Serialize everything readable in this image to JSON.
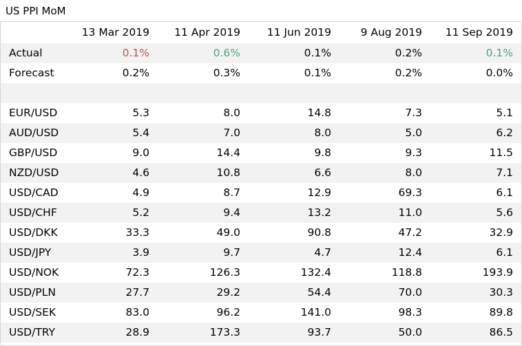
{
  "title": "US PPI MoM",
  "columns": [
    "13 Mar 2019",
    "11 Apr 2019",
    "11 Jun 2019",
    "9 Aug 2019",
    "11 Sep 2019"
  ],
  "actual": {
    "label": "Actual",
    "values": [
      "0.1%",
      "0.6%",
      "0.1%",
      "0.2%",
      "0.1%"
    ],
    "value_colors": [
      "red",
      "green",
      "black",
      "black",
      "green"
    ]
  },
  "forecast": {
    "label": "Forecast",
    "values": [
      "0.2%",
      "0.3%",
      "0.1%",
      "0.2%",
      "0.0%"
    ]
  },
  "pairs": [
    {
      "label": "EUR/USD",
      "values": [
        "5.3",
        "8.0",
        "14.8",
        "7.3",
        "5.1"
      ]
    },
    {
      "label": "AUD/USD",
      "values": [
        "5.4",
        "7.0",
        "8.0",
        "5.0",
        "6.2"
      ]
    },
    {
      "label": "GBP/USD",
      "values": [
        "9.0",
        "14.4",
        "9.8",
        "9.3",
        "11.5"
      ]
    },
    {
      "label": "NZD/USD",
      "values": [
        "4.6",
        "10.8",
        "6.6",
        "8.0",
        "7.1"
      ]
    },
    {
      "label": "USD/CAD",
      "values": [
        "4.9",
        "8.7",
        "12.9",
        "69.3",
        "6.1"
      ]
    },
    {
      "label": "USD/CHF",
      "values": [
        "5.2",
        "9.4",
        "13.2",
        "11.0",
        "5.6"
      ]
    },
    {
      "label": "USD/DKK",
      "values": [
        "33.3",
        "49.0",
        "90.8",
        "47.2",
        "32.9"
      ]
    },
    {
      "label": "USD/JPY",
      "values": [
        "3.9",
        "9.7",
        "4.7",
        "12.4",
        "6.1"
      ]
    },
    {
      "label": "USD/NOK",
      "values": [
        "72.3",
        "126.3",
        "132.4",
        "118.8",
        "193.9"
      ]
    },
    {
      "label": "USD/PLN",
      "values": [
        "27.7",
        "29.2",
        "54.4",
        "70.0",
        "30.3"
      ]
    },
    {
      "label": "USD/SEK",
      "values": [
        "83.0",
        "96.2",
        "141.0",
        "98.3",
        "89.8"
      ]
    },
    {
      "label": "USD/TRY",
      "values": [
        "28.9",
        "173.3",
        "93.7",
        "50.0",
        "86.5"
      ]
    }
  ],
  "colors": {
    "red": "#c0504d",
    "green": "#4aa57a",
    "row_shade": "#f2f2f2",
    "border": "#d4d4d4"
  }
}
